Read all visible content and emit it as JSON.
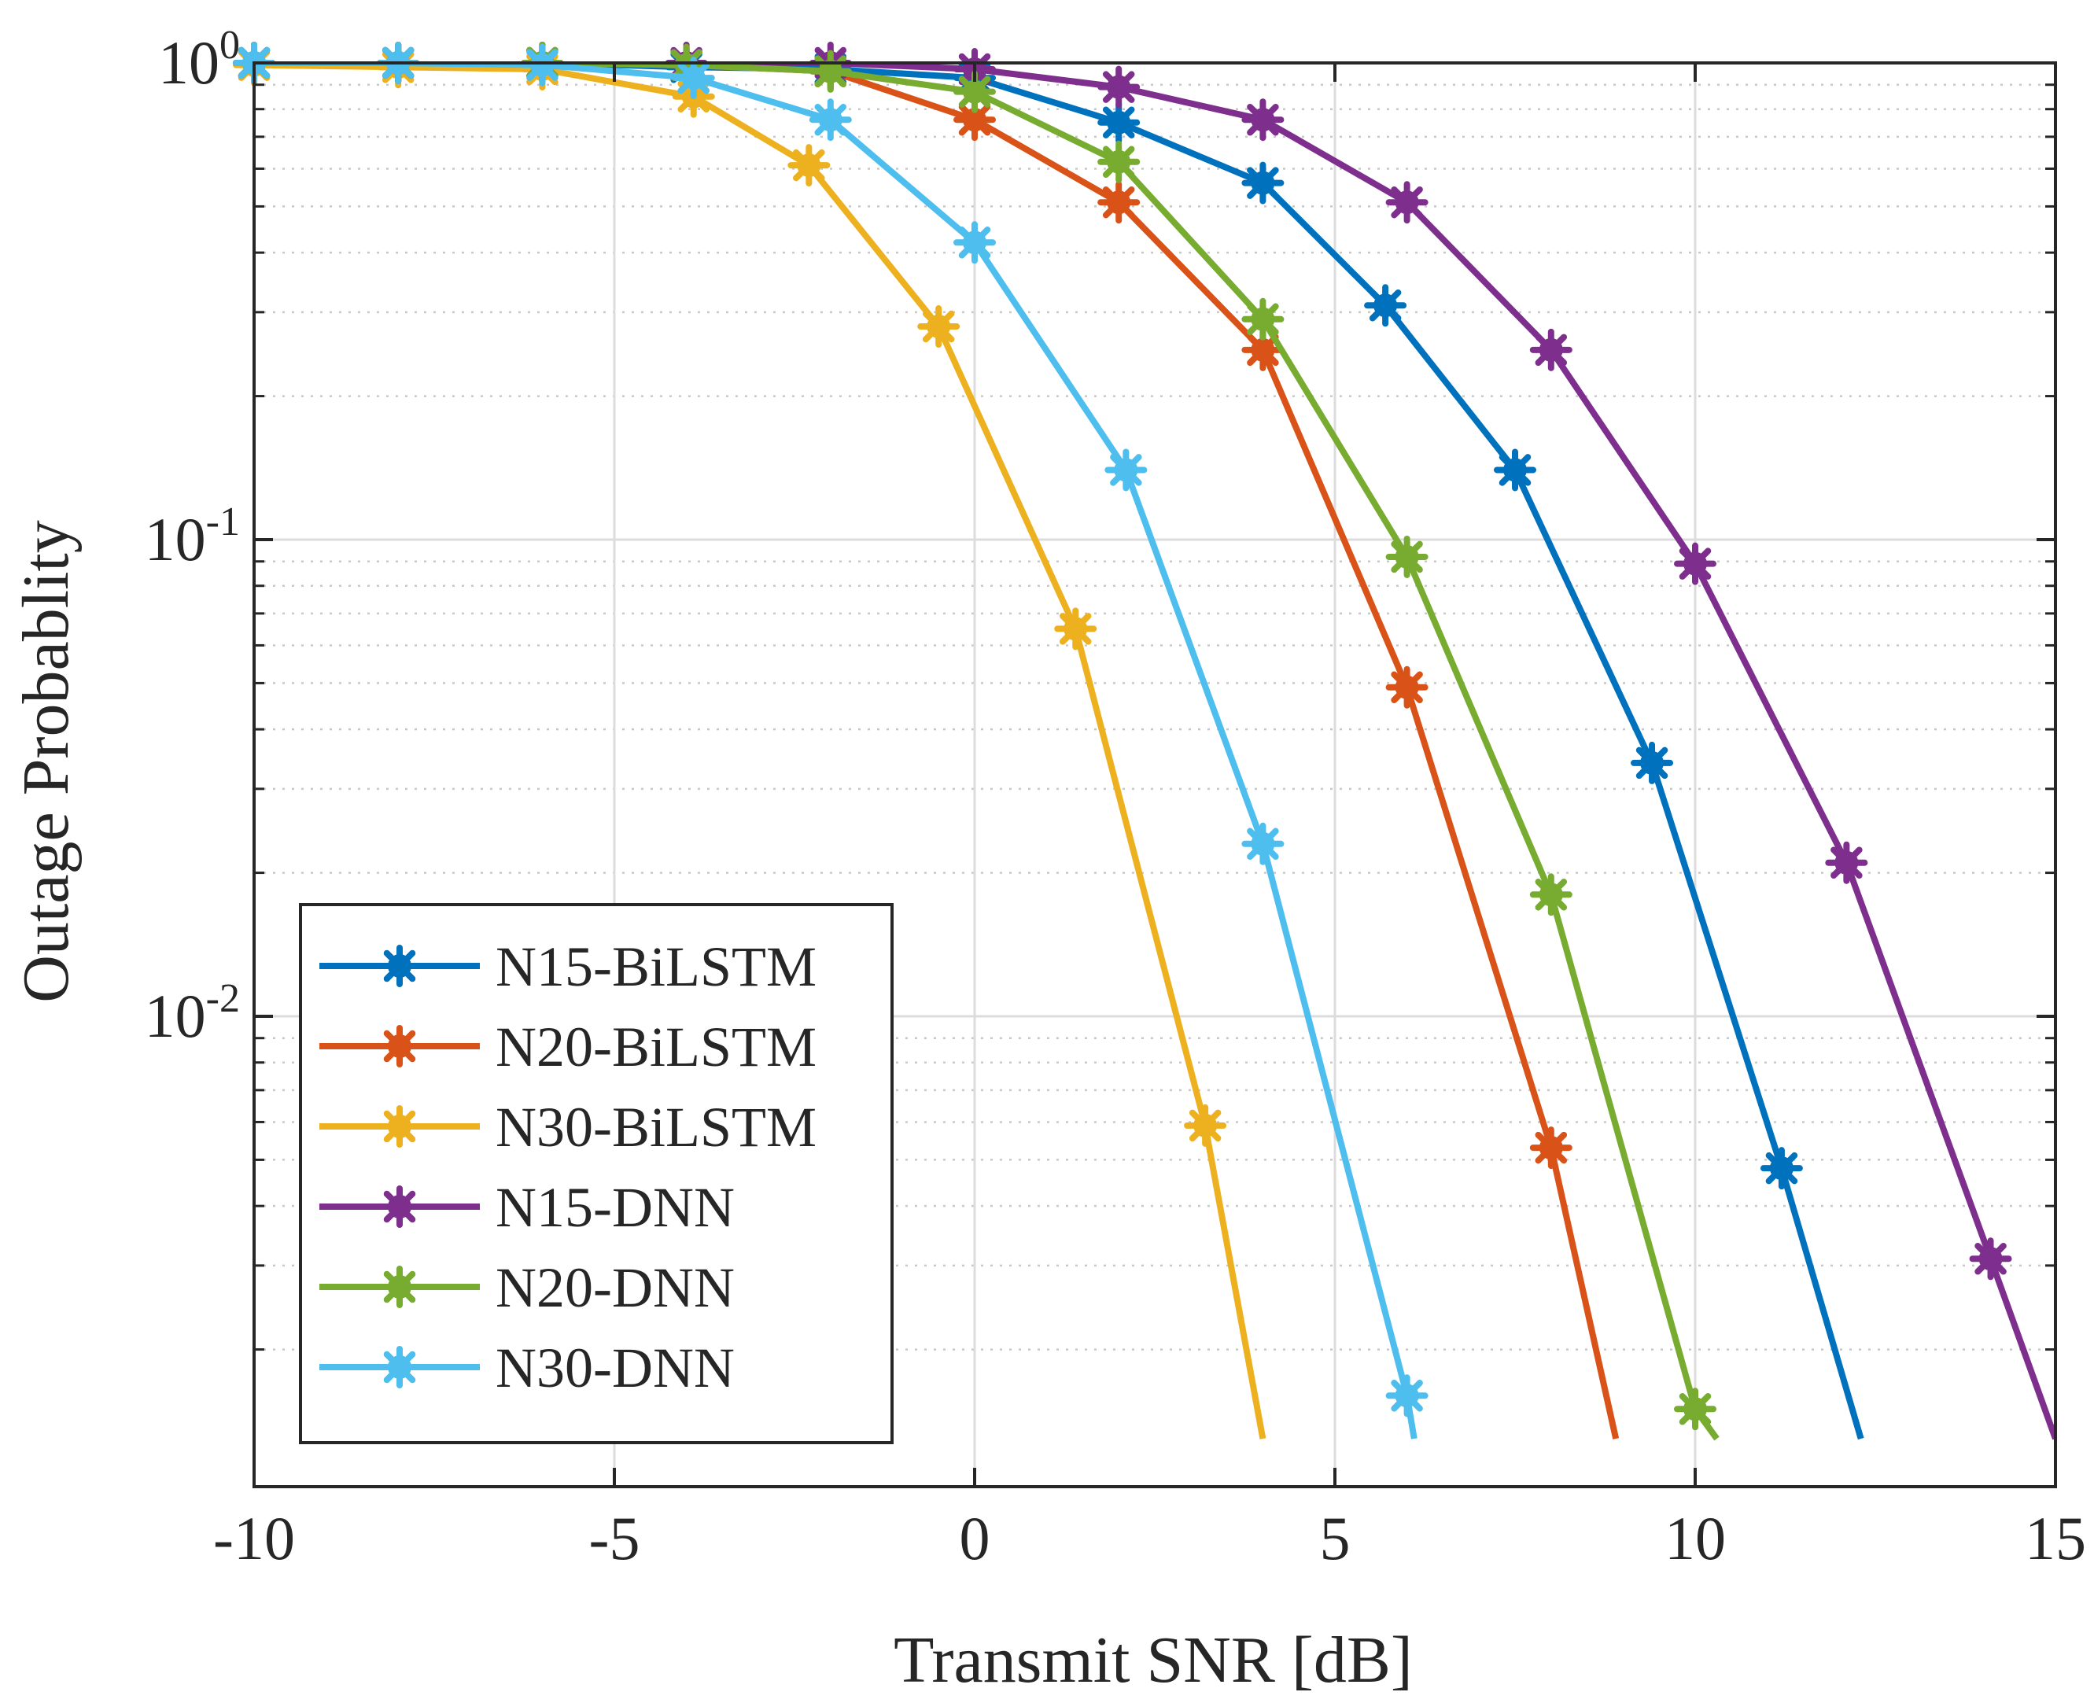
{
  "chart_data": {
    "type": "line",
    "title": "",
    "xlabel": "Transmit SNR [dB]",
    "ylabel": "Outage Probablity",
    "xlim": [
      -10,
      15
    ],
    "ylim": [
      0.0013,
      1.0
    ],
    "yscale": "log",
    "grid": true,
    "legend_position": "bottom-left",
    "xticks": [
      -10,
      -5,
      0,
      5,
      10,
      15
    ],
    "xtick_labels": [
      "-10",
      "-5",
      "0",
      "5",
      "10",
      "15"
    ],
    "yticks": [
      {
        "value": 1,
        "base": "10",
        "exp": "0"
      },
      {
        "value": 0.1,
        "base": "10",
        "exp": "-1"
      },
      {
        "value": 0.01,
        "base": "10",
        "exp": "-2"
      }
    ],
    "series": [
      {
        "name": "N15-BiLSTM",
        "color": "#0072BD",
        "x": [
          -10,
          -8,
          -6,
          -4,
          -2,
          0,
          2,
          4,
          5.7,
          7.5,
          9.4,
          11.2,
          12.3
        ],
        "y": [
          1.0,
          1.0,
          1.0,
          0.98,
          0.97,
          0.93,
          0.75,
          0.56,
          0.31,
          0.14,
          0.034,
          0.0048,
          0.0013
        ],
        "marked": [
          true,
          true,
          true,
          true,
          true,
          true,
          true,
          true,
          true,
          true,
          true,
          true,
          false
        ]
      },
      {
        "name": "N20-BiLSTM",
        "color": "#D95319",
        "x": [
          -10,
          -8,
          -6,
          -4,
          -2,
          0,
          2,
          4,
          6,
          8,
          8.9
        ],
        "y": [
          1.0,
          1.0,
          1.0,
          0.99,
          0.96,
          0.76,
          0.51,
          0.25,
          0.049,
          0.0053,
          0.0013
        ],
        "marked": [
          true,
          true,
          true,
          true,
          true,
          true,
          true,
          true,
          true,
          true,
          false
        ]
      },
      {
        "name": "N30-BiLSTM",
        "color": "#EDB120",
        "x": [
          -10,
          -8,
          -6,
          -3.9,
          -2.3,
          -0.5,
          1.4,
          3.2,
          4
        ],
        "y": [
          0.99,
          0.98,
          0.97,
          0.85,
          0.61,
          0.28,
          0.065,
          0.0059,
          0.0013
        ],
        "marked": [
          true,
          true,
          true,
          true,
          true,
          true,
          true,
          true,
          false
        ]
      },
      {
        "name": "N15-DNN",
        "color": "#7E2F8E",
        "x": [
          -10,
          -8,
          -6,
          -4,
          -2,
          0,
          2,
          4,
          6,
          8,
          10,
          12.1,
          14.1,
          15
        ],
        "y": [
          1.0,
          1.0,
          1.0,
          1.0,
          1.0,
          0.97,
          0.89,
          0.76,
          0.51,
          0.25,
          0.089,
          0.021,
          0.0031,
          0.0013
        ],
        "marked": [
          true,
          true,
          true,
          true,
          true,
          true,
          true,
          true,
          true,
          true,
          true,
          true,
          true,
          false
        ]
      },
      {
        "name": "N20-DNN",
        "color": "#77AC30",
        "x": [
          -10,
          -8,
          -6,
          -4,
          -2,
          0,
          2,
          4,
          6,
          8,
          10,
          10.3
        ],
        "y": [
          1.0,
          1.0,
          1.0,
          0.99,
          0.96,
          0.87,
          0.62,
          0.29,
          0.092,
          0.018,
          0.0015,
          0.0013
        ],
        "marked": [
          true,
          true,
          true,
          true,
          true,
          true,
          true,
          true,
          true,
          true,
          true,
          false
        ]
      },
      {
        "name": "N30-DNN",
        "color": "#4DBEEE",
        "x": [
          -10,
          -8,
          -6,
          -3.9,
          -2,
          0,
          2.1,
          4,
          6,
          6.1
        ],
        "y": [
          1.0,
          1.0,
          0.99,
          0.93,
          0.76,
          0.42,
          0.14,
          0.023,
          0.0016,
          0.0013
        ],
        "marked": [
          true,
          true,
          true,
          true,
          true,
          true,
          true,
          true,
          true,
          false
        ]
      }
    ]
  }
}
